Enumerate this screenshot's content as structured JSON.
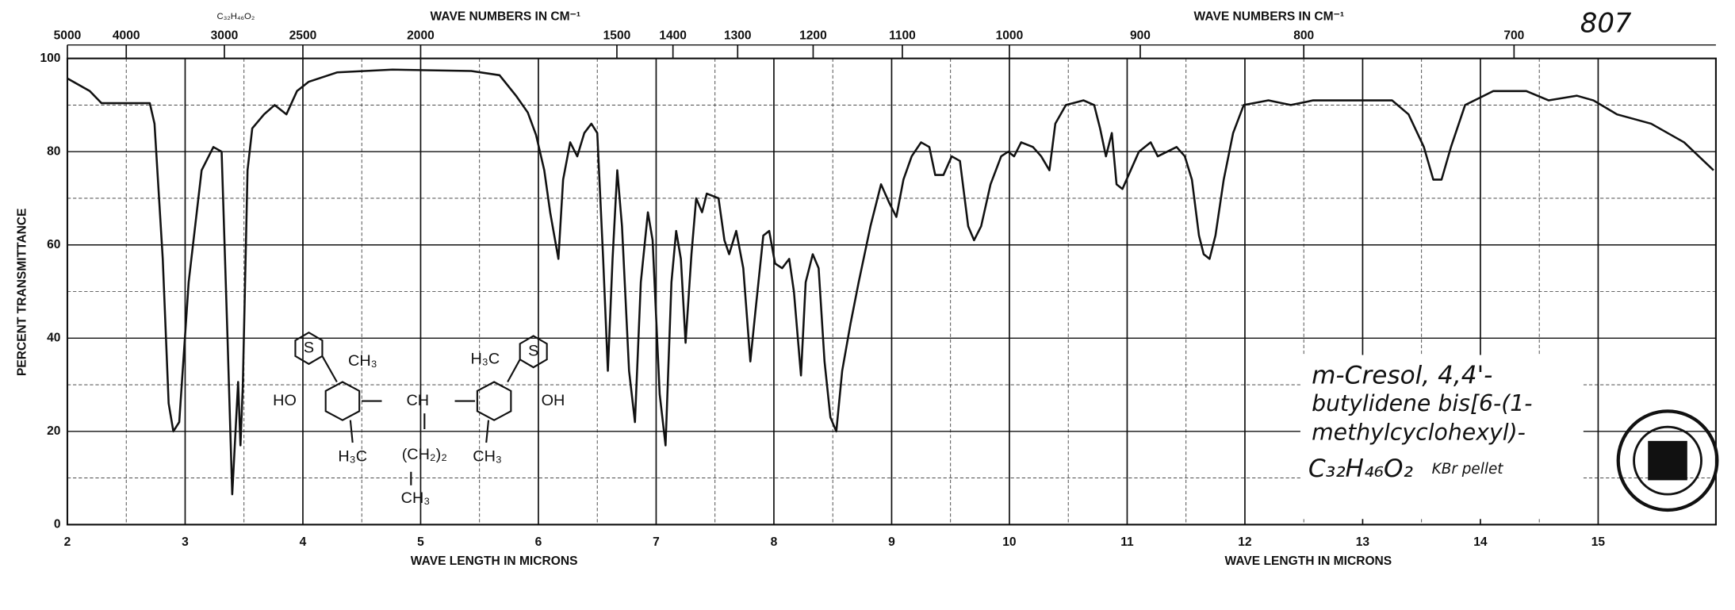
{
  "chart_data": {
    "type": "line",
    "page_number": "807",
    "formula_header": "C₃₂H₄₆O₂",
    "x2label": "WAVE NUMBERS IN CM⁻¹",
    "xlabel": "WAVE LENGTH IN MICRONS",
    "ylabel": "PERCENT TRANSMITTANCE",
    "color": "#111111",
    "grid": true,
    "xlim": [
      2,
      16
    ],
    "xticks": [
      2,
      3,
      4,
      5,
      6,
      7,
      8,
      9,
      10,
      11,
      12,
      13,
      14,
      15
    ],
    "x2lim": [
      5000,
      625
    ],
    "x2ticks": [
      5000,
      4000,
      3000,
      2500,
      2000,
      1500,
      1400,
      1300,
      1200,
      1100,
      1000,
      900,
      800,
      700
    ],
    "ylim": [
      0,
      100
    ],
    "yticks": [
      0,
      20,
      40,
      60,
      80,
      100
    ],
    "x": [
      2.0,
      2.19,
      2.29,
      2.7,
      2.74,
      2.81,
      2.86,
      2.9,
      2.95,
      3.03,
      3.14,
      3.24,
      3.31,
      3.36,
      3.4,
      3.43,
      3.45,
      3.47,
      3.49,
      3.53,
      3.57,
      3.67,
      3.76,
      3.86,
      3.95,
      4.05,
      4.29,
      4.76,
      5.43,
      5.67,
      5.81,
      5.91,
      5.98,
      6.05,
      6.1,
      6.17,
      6.21,
      6.27,
      6.33,
      6.39,
      6.45,
      6.5,
      6.55,
      6.59,
      6.63,
      6.67,
      6.71,
      6.77,
      6.82,
      6.87,
      6.93,
      6.97,
      7.03,
      7.08,
      7.13,
      7.17,
      7.21,
      7.25,
      7.3,
      7.34,
      7.39,
      7.43,
      7.53,
      7.58,
      7.62,
      7.68,
      7.74,
      7.8,
      7.84,
      7.91,
      7.96,
      8.01,
      8.07,
      8.13,
      8.17,
      8.23,
      8.27,
      8.33,
      8.38,
      8.43,
      8.48,
      8.53,
      8.58,
      8.65,
      8.72,
      8.82,
      8.91,
      8.98,
      9.04,
      9.1,
      9.17,
      9.25,
      9.32,
      9.37,
      9.44,
      9.51,
      9.58,
      9.65,
      9.7,
      9.76,
      9.84,
      9.93,
      9.99,
      10.04,
      10.1,
      10.2,
      10.27,
      10.34,
      10.39,
      10.48,
      10.63,
      10.72,
      10.77,
      10.82,
      10.87,
      10.91,
      10.96,
      11.03,
      11.1,
      11.2,
      11.26,
      11.34,
      11.42,
      11.49,
      11.55,
      11.61,
      11.65,
      11.7,
      11.75,
      11.82,
      11.9,
      11.99,
      12.2,
      12.39,
      12.58,
      12.87,
      13.25,
      13.39,
      13.52,
      13.6,
      13.67,
      13.75,
      13.87,
      14.11,
      14.39,
      14.58,
      14.82,
      14.96,
      15.16,
      15.45,
      15.73,
      15.98
    ],
    "values": [
      95.7,
      93,
      90.4,
      90.4,
      86,
      57,
      26,
      20,
      22,
      52,
      76,
      81,
      80,
      40,
      6.5,
      21,
      30.6,
      17,
      30,
      76,
      85,
      88,
      90,
      88,
      93,
      95,
      97,
      97.6,
      97.3,
      96.4,
      92,
      88.4,
      83.6,
      76,
      67,
      57,
      74,
      82,
      79,
      84,
      86,
      84,
      57,
      33,
      57,
      76,
      64,
      33,
      22,
      52,
      67,
      61,
      28,
      17,
      52,
      63,
      57,
      39,
      58,
      70,
      67,
      71,
      70,
      61,
      58,
      63,
      55,
      35,
      45,
      62,
      63,
      56,
      55,
      57,
      50,
      32,
      52,
      58,
      55,
      35,
      23,
      20,
      33,
      43,
      52,
      64,
      73,
      69,
      66,
      74,
      79,
      82,
      81,
      75,
      75,
      79,
      78,
      64,
      61,
      64,
      73,
      79,
      80,
      79,
      82,
      81,
      79,
      76,
      86,
      90,
      91,
      90,
      85,
      79,
      84,
      73,
      72,
      76,
      80,
      82,
      79,
      80,
      81,
      79,
      74,
      62,
      58,
      57,
      62,
      74,
      84,
      90,
      91,
      90,
      91,
      91,
      91,
      88,
      81,
      74,
      74,
      81,
      90,
      93,
      93,
      91,
      92,
      91,
      88,
      86,
      82,
      76
    ],
    "structure": [
      "S",
      "CH₃",
      "HO",
      "CH",
      "OH",
      "H₃C",
      "S",
      "H₃C",
      "(CH₂)₂",
      "CH₃",
      "CH₃"
    ],
    "annotation": [
      "m-Cresol, 4,4'-",
      "butylidene bis[6-(1-",
      "methylcyclohexyl)-",
      "C₃₂H₄₆O₂",
      "KBr pellet"
    ]
  }
}
